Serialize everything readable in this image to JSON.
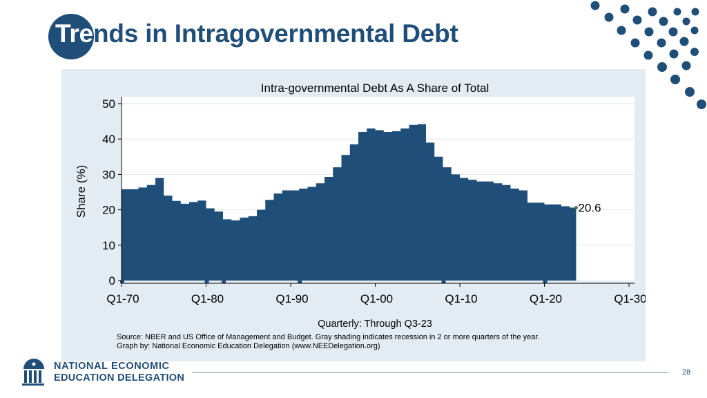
{
  "slide": {
    "title_part1": "Tre",
    "title_part2": "nds in Intragovernmental Debt",
    "page_number": "28",
    "accent_color": "#1f4e79"
  },
  "logo": {
    "line1": "NATIONAL ECONOMIC",
    "line2": "EDUCATION DELEGATION",
    "icon": "columns-building-icon"
  },
  "chart_data": {
    "type": "area",
    "title": "Intra-governmental Debt As A Share of Total",
    "ylabel": "Share (%)",
    "xlabel": "Quarterly: Through Q3-23",
    "source_line1": "Source: NBER and US Office of Management and Budget. Gray shading indicates recession in 2 or more quarters of the year.",
    "source_line2": "Graph by: National Economic Education Delegation (www.NEEDelegation.org)",
    "ylim": [
      0,
      50
    ],
    "yticks": [
      "0",
      "10",
      "20",
      "30",
      "40",
      "50"
    ],
    "xlim": [
      1970,
      2030
    ],
    "xticks": [
      "Q1-70",
      "Q1-80",
      "Q1-90",
      "Q1-00",
      "Q1-10",
      "Q1-20",
      "Q1-30"
    ],
    "grid": true,
    "end_label": "20.6",
    "fill_color": "#1f4e79",
    "background_color": "#e4ecf3",
    "recession_years": [
      1970,
      1980,
      1982,
      1991,
      2008,
      2020
    ],
    "series": [
      {
        "x": [
          1970,
          1971,
          1972,
          1973,
          1974,
          1975,
          1976,
          1977,
          1978,
          1979,
          1980,
          1981,
          1982,
          1983,
          1984,
          1985,
          1986,
          1987,
          1988,
          1989,
          1990,
          1991,
          1992,
          1993,
          1994,
          1995,
          1996,
          1997,
          1998,
          1999,
          2000,
          2001,
          2002,
          2003,
          2004,
          2005,
          2006,
          2007,
          2008,
          2009,
          2010,
          2011,
          2012,
          2013,
          2014,
          2015,
          2016,
          2017,
          2018,
          2019,
          2020,
          2021,
          2022,
          2023,
          2023.75
        ],
        "y": [
          25.8,
          25.8,
          26.3,
          27.0,
          29.0,
          24.0,
          22.5,
          21.7,
          22.2,
          22.6,
          20.4,
          19.5,
          17.3,
          17.0,
          17.8,
          18.2,
          20.0,
          22.8,
          24.6,
          25.5,
          25.5,
          26.0,
          26.5,
          27.5,
          29.3,
          32.0,
          35.5,
          38.5,
          42.0,
          43.0,
          42.5,
          42.0,
          42.2,
          43.0,
          44.0,
          44.2,
          39.0,
          35.0,
          32.0,
          30.0,
          29.0,
          28.5,
          28.0,
          28.0,
          27.5,
          27.0,
          26.0,
          25.5,
          22.0,
          22.0,
          21.5,
          21.5,
          21.0,
          20.6,
          20.6
        ]
      }
    ]
  }
}
